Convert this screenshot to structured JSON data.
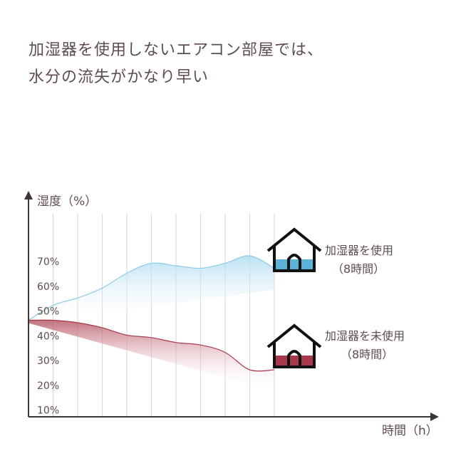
{
  "headline": {
    "line1": "加湿器を使用しないエアコン部屋では、",
    "line2": "水分の流失がかなり早い"
  },
  "chart_data": {
    "type": "area",
    "ylabel": "湿度（%）",
    "xlabel": "時間（h）",
    "y_ticks": [
      "70%",
      "60%",
      "50%",
      "40%",
      "30%",
      "20%",
      "10%"
    ],
    "y_tick_values": [
      70,
      60,
      50,
      40,
      30,
      20,
      10
    ],
    "ylim": [
      7,
      89
    ],
    "xlim": [
      0,
      10
    ],
    "x_gridlines": 10,
    "grid": true,
    "series": [
      {
        "name": "加湿器を使用",
        "sub": "（8時間）",
        "color": "#8ccbe6",
        "icon_fill": "#5bb3da",
        "x": [
          0,
          1,
          2,
          3,
          4,
          5,
          6,
          7,
          8,
          9,
          10
        ],
        "values": [
          46,
          52,
          55,
          59,
          65,
          69,
          68,
          67,
          69,
          72,
          67
        ]
      },
      {
        "name": "加湿器を未使用",
        "sub": "（8時間）",
        "color": "#a8394d",
        "icon_fill": "#a8394d",
        "x": [
          0,
          1,
          2,
          3,
          4,
          5,
          6,
          7,
          8,
          9,
          10
        ],
        "values": [
          46,
          46,
          45,
          43,
          40,
          39,
          37,
          36,
          33,
          26,
          26
        ]
      }
    ]
  }
}
